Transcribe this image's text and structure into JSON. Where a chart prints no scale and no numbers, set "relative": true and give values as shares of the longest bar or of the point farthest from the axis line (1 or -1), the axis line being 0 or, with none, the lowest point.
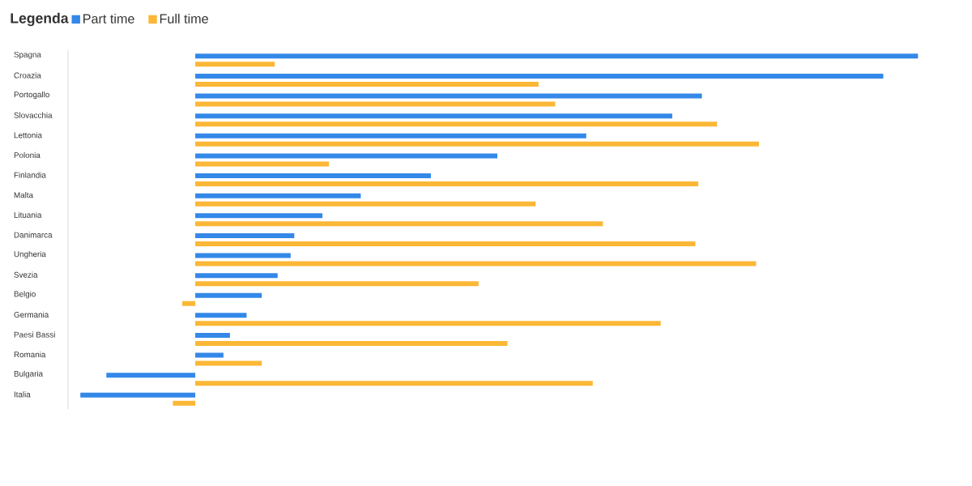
{
  "chart_data": {
    "type": "bar",
    "orientation": "horizontal",
    "relative": true,
    "legend_title": "Legenda",
    "legend": "top left",
    "categories": [
      "Spagna",
      "Croazia",
      "Portogallo",
      "Slovacchia",
      "Lettonia",
      "Polonia",
      "Finlandia",
      "Malta",
      "Lituania",
      "Danimarca",
      "Ungheria",
      "Svezia",
      "Belgio",
      "Germania",
      "Paesi Bassi",
      "Romania",
      "Bulgaria",
      "Italia"
    ],
    "series": [
      {
        "name": "Part time",
        "color": "#3388e8",
        "values": [
          1,
          0.952,
          0.701,
          0.66,
          0.541,
          0.418,
          0.326,
          0.229,
          0.176,
          0.137,
          0.132,
          0.114,
          0.092,
          0.071,
          0.048,
          0.039,
          -0.123,
          -0.159
        ]
      },
      {
        "name": "Full time",
        "color": "#fbb735",
        "values": [
          0.11,
          0.475,
          0.498,
          0.722,
          0.78,
          0.185,
          0.696,
          0.471,
          0.564,
          0.692,
          0.776,
          0.392,
          -0.018,
          0.644,
          0.432,
          0.092,
          0.55,
          -0.031
        ]
      }
    ]
  }
}
